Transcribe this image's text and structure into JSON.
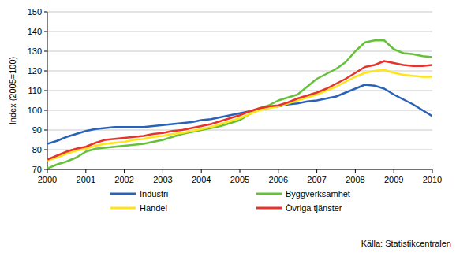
{
  "chart_data": {
    "type": "line",
    "y_label": "Index (2005=100)",
    "source": "Källa: Statistikcentralen",
    "x": [
      2000,
      2000.25,
      2000.5,
      2000.75,
      2001,
      2001.25,
      2001.5,
      2001.75,
      2002,
      2002.25,
      2002.5,
      2002.75,
      2003,
      2003.25,
      2003.5,
      2003.75,
      2004,
      2004.25,
      2004.5,
      2004.75,
      2005,
      2005.25,
      2005.5,
      2005.75,
      2006,
      2006.25,
      2006.5,
      2006.75,
      2007,
      2007.25,
      2007.5,
      2007.75,
      2008,
      2008.25,
      2008.5,
      2008.75,
      2009,
      2009.25,
      2009.5,
      2009.75,
      2010
    ],
    "xlim": [
      2000,
      2010
    ],
    "xticks": [
      2000,
      2001,
      2002,
      2003,
      2004,
      2005,
      2006,
      2007,
      2008,
      2009,
      2010
    ],
    "ylim": [
      70,
      150
    ],
    "yticks": [
      70,
      80,
      90,
      100,
      110,
      120,
      130,
      140,
      150
    ],
    "grid": true,
    "legend": "bottom",
    "series": [
      {
        "name": "Industri",
        "color": "#2a62b8",
        "values": [
          83,
          84.5,
          86.5,
          88,
          89.5,
          90.5,
          91,
          91.5,
          91.5,
          91.5,
          91.5,
          92,
          92.5,
          93,
          93.5,
          94,
          95,
          95.5,
          96.5,
          97.5,
          98.5,
          99.5,
          100.5,
          101.5,
          102,
          103,
          103.5,
          104.5,
          105,
          106,
          107,
          109,
          111,
          113,
          112.5,
          111,
          108,
          105.5,
          103,
          100,
          97
        ]
      },
      {
        "name": "Byggverksamhet",
        "color": "#66c03a",
        "values": [
          70.5,
          72.5,
          74,
          76,
          79,
          80.5,
          81,
          81.5,
          82,
          82.5,
          83,
          84,
          85,
          86.5,
          88,
          89,
          90,
          91,
          92,
          93.5,
          95,
          98,
          101,
          102.5,
          105,
          106.5,
          108,
          112,
          116,
          118.5,
          121,
          124.5,
          130,
          134.5,
          135.5,
          135.5,
          131,
          129,
          128.5,
          127.5,
          127
        ]
      },
      {
        "name": "Handel",
        "color": "#ffe41a",
        "values": [
          74.5,
          76,
          78,
          79.5,
          80.5,
          82,
          83,
          83.5,
          84,
          85,
          85.5,
          86.5,
          87,
          88,
          88.5,
          89.5,
          90.5,
          91.5,
          93,
          94.5,
          96,
          98,
          100,
          101,
          102,
          103.5,
          105,
          106.5,
          108,
          110,
          112,
          114.5,
          117,
          119,
          120,
          120.5,
          119,
          118,
          117.5,
          117,
          117
        ]
      },
      {
        "name": "Övriga tjänster",
        "color": "#e8322c",
        "values": [
          75,
          77,
          79,
          80.5,
          81.5,
          83.5,
          85,
          85.5,
          86,
          86.5,
          87,
          88,
          88.5,
          89.5,
          90,
          91,
          92,
          93,
          94.5,
          96,
          97.5,
          99.5,
          101,
          102,
          102.5,
          104,
          106,
          107.5,
          109,
          111,
          113.5,
          116,
          119,
          122,
          123,
          125,
          124,
          123,
          122.5,
          122.5,
          123
        ]
      }
    ]
  }
}
